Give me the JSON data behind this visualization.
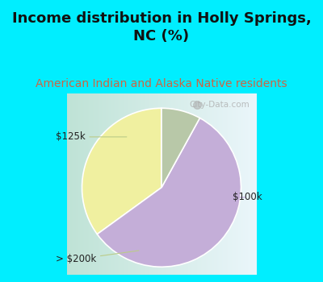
{
  "title": "Income distribution in Holly Springs,\nNC (%)",
  "subtitle": "American Indian and Alaska Native residents",
  "slices": [
    {
      "label": "$125k",
      "value": 35,
      "color": "#f0f0a0"
    },
    {
      "label": "$100k",
      "value": 57,
      "color": "#c4aed8"
    },
    {
      "label": "> $200k",
      "value": 8,
      "color": "#b8c8a8"
    }
  ],
  "title_fontsize": 13,
  "subtitle_fontsize": 10,
  "title_color": "#111111",
  "subtitle_color": "#cc6644",
  "bg_cyan": "#00eeff",
  "watermark": "City-Data.com",
  "startangle": 90
}
